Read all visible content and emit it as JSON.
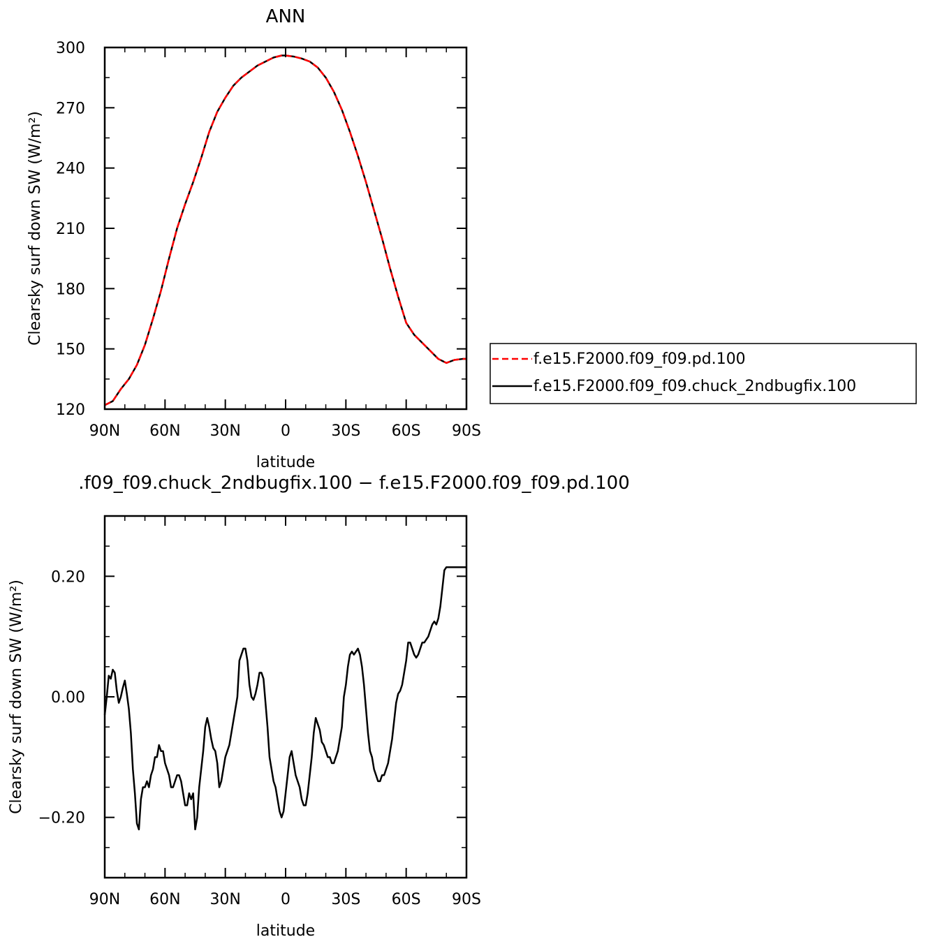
{
  "chart_data": [
    {
      "type": "line",
      "title": "ANN",
      "xlabel": "latitude",
      "ylabel": "Clearsky surf down SW (W/m²)",
      "xlim": [
        90,
        -90
      ],
      "ylim": [
        120,
        300
      ],
      "xticks": [
        90,
        60,
        30,
        0,
        -30,
        -60,
        -90
      ],
      "xtick_labels": [
        "90N",
        "60N",
        "30N",
        "0",
        "30S",
        "60S",
        "90S"
      ],
      "yticks": [
        120,
        150,
        180,
        210,
        240,
        270,
        300
      ],
      "ytick_labels": [
        "120",
        "150",
        "180",
        "210",
        "240",
        "270",
        "300"
      ],
      "legend_position": "right",
      "series": [
        {
          "name": "f.e15.F2000.f09_f09.pd.100",
          "color": "#ff0000",
          "dash": "dashed",
          "x": [
            90,
            86,
            82,
            78,
            74,
            70,
            66,
            62,
            58,
            54,
            50,
            46,
            42,
            38,
            34,
            30,
            26,
            22,
            18,
            14,
            10,
            6,
            2,
            0,
            -4,
            -8,
            -12,
            -16,
            -20,
            -24,
            -28,
            -32,
            -36,
            -40,
            -44,
            -48,
            -52,
            -56,
            -60,
            -64,
            -68,
            -72,
            -76,
            -80,
            -84,
            -88,
            -90
          ],
          "values": [
            122,
            124,
            130,
            135,
            142,
            152,
            165,
            179,
            195,
            210,
            222,
            233,
            245,
            258,
            268,
            275,
            281,
            285,
            288,
            291,
            293,
            295,
            296,
            296,
            295.5,
            294.5,
            293,
            290,
            285,
            278,
            269,
            258,
            246,
            233,
            219,
            205,
            190,
            176,
            163,
            157,
            153,
            149,
            145,
            143,
            144.5,
            145,
            145
          ]
        },
        {
          "name": "f.e15.F2000.f09_f09.chuck_2ndbugfix.100",
          "color": "#000000",
          "dash": "solid",
          "x": [
            90,
            86,
            82,
            78,
            74,
            70,
            66,
            62,
            58,
            54,
            50,
            46,
            42,
            38,
            34,
            30,
            26,
            22,
            18,
            14,
            10,
            6,
            2,
            0,
            -4,
            -8,
            -12,
            -16,
            -20,
            -24,
            -28,
            -32,
            -36,
            -40,
            -44,
            -48,
            -52,
            -56,
            -60,
            -64,
            -68,
            -72,
            -76,
            -80,
            -84,
            -88,
            -90
          ],
          "values": [
            122,
            124,
            130,
            135,
            142,
            152,
            165,
            179,
            195,
            210,
            222,
            233,
            245,
            258,
            268,
            275,
            281,
            285,
            288,
            291,
            293,
            295,
            296,
            296,
            295.5,
            294.5,
            293,
            290,
            285,
            278,
            269,
            258,
            246,
            233,
            219,
            205,
            190,
            176,
            163,
            157,
            153,
            149,
            145,
            143,
            144.5,
            145,
            145
          ]
        }
      ]
    },
    {
      "type": "line",
      "title": ".f09_f09.chuck_2ndbugfix.100 − f.e15.F2000.f09_f09.pd.100",
      "xlabel": "latitude",
      "ylabel": "Clearsky surf down SW (W/m²)",
      "xlim": [
        90,
        -90
      ],
      "ylim": [
        -0.3,
        0.3
      ],
      "xticks": [
        90,
        60,
        30,
        0,
        -30,
        -60,
        -90
      ],
      "xtick_labels": [
        "90N",
        "60N",
        "30N",
        "0",
        "30S",
        "60S",
        "90S"
      ],
      "yticks": [
        -0.2,
        0,
        0.2
      ],
      "ytick_labels": [
        "−0.20",
        "0.00",
        "0.20"
      ],
      "series": [
        {
          "name": "",
          "color": "#000000",
          "dash": "solid",
          "x": [
            90,
            89,
            88,
            87,
            86,
            85,
            84,
            83,
            82,
            81,
            80,
            79,
            78,
            77,
            76,
            75,
            74,
            73,
            72,
            71,
            70,
            69,
            68,
            67,
            66,
            65,
            64,
            63,
            62,
            61,
            60,
            59,
            58,
            57,
            56,
            55,
            54,
            53,
            52,
            51,
            50,
            49,
            48,
            47,
            46,
            45,
            44,
            43,
            42,
            41,
            40,
            39,
            38,
            37,
            36,
            35,
            34,
            33,
            32,
            31,
            30,
            29,
            28,
            27,
            26,
            25,
            24,
            23,
            22,
            21,
            20,
            19,
            18,
            17,
            16,
            15,
            14,
            13,
            12,
            11,
            10,
            9,
            8,
            7,
            6,
            5,
            4,
            3,
            2,
            1,
            0,
            -1,
            -2,
            -3,
            -4,
            -5,
            -6,
            -7,
            -8,
            -9,
            -10,
            -11,
            -12,
            -13,
            -14,
            -15,
            -16,
            -17,
            -18,
            -19,
            -20,
            -21,
            -22,
            -23,
            -24,
            -25,
            -26,
            -27,
            -28,
            -29,
            -30,
            -31,
            -32,
            -33,
            -34,
            -35,
            -36,
            -37,
            -38,
            -39,
            -40,
            -41,
            -42,
            -43,
            -44,
            -45,
            -46,
            -47,
            -48,
            -49,
            -50,
            -51,
            -52,
            -53,
            -54,
            -55,
            -56,
            -57,
            -58,
            -59,
            -60,
            -61,
            -62,
            -63,
            -64,
            -65,
            -66,
            -67,
            -68,
            -69,
            -70,
            -71,
            -72,
            -73,
            -74,
            -75,
            -76,
            -77,
            -78,
            -79,
            -80,
            -81,
            -82,
            -83,
            -84,
            -85,
            -86,
            -87,
            -88,
            -89,
            -90
          ],
          "values": [
            -0.03,
            0.0,
            0.035,
            0.03,
            0.045,
            0.04,
            0.01,
            -0.01,
            0.0,
            0.015,
            0.027,
            0.005,
            -0.02,
            -0.06,
            -0.12,
            -0.16,
            -0.21,
            -0.22,
            -0.17,
            -0.15,
            -0.15,
            -0.14,
            -0.15,
            -0.13,
            -0.12,
            -0.1,
            -0.1,
            -0.08,
            -0.09,
            -0.09,
            -0.11,
            -0.12,
            -0.13,
            -0.15,
            -0.15,
            -0.14,
            -0.13,
            -0.13,
            -0.14,
            -0.16,
            -0.18,
            -0.18,
            -0.16,
            -0.17,
            -0.16,
            -0.22,
            -0.2,
            -0.15,
            -0.12,
            -0.09,
            -0.05,
            -0.035,
            -0.05,
            -0.07,
            -0.085,
            -0.09,
            -0.11,
            -0.15,
            -0.14,
            -0.12,
            -0.1,
            -0.09,
            -0.08,
            -0.06,
            -0.04,
            -0.02,
            0.0,
            0.06,
            0.07,
            0.08,
            0.08,
            0.06,
            0.02,
            0.0,
            -0.005,
            0.005,
            0.02,
            0.04,
            0.04,
            0.03,
            -0.01,
            -0.05,
            -0.1,
            -0.12,
            -0.14,
            -0.15,
            -0.17,
            -0.19,
            -0.2,
            -0.19,
            -0.16,
            -0.13,
            -0.1,
            -0.09,
            -0.11,
            -0.13,
            -0.14,
            -0.15,
            -0.17,
            -0.18,
            -0.18,
            -0.16,
            -0.13,
            -0.1,
            -0.06,
            -0.035,
            -0.045,
            -0.055,
            -0.075,
            -0.08,
            -0.09,
            -0.1,
            -0.1,
            -0.11,
            -0.11,
            -0.1,
            -0.09,
            -0.07,
            -0.05,
            0.0,
            0.02,
            0.05,
            0.07,
            0.075,
            0.07,
            0.075,
            0.08,
            0.07,
            0.05,
            0.02,
            -0.02,
            -0.06,
            -0.09,
            -0.1,
            -0.12,
            -0.13,
            -0.14,
            -0.14,
            -0.13,
            -0.13,
            -0.12,
            -0.11,
            -0.09,
            -0.07,
            -0.04,
            -0.01,
            0.005,
            0.01,
            0.02,
            0.04,
            0.06,
            0.09,
            0.09,
            0.08,
            0.07,
            0.065,
            0.07,
            0.08,
            0.09,
            0.09,
            0.095,
            0.1,
            0.11,
            0.12,
            0.125,
            0.12,
            0.13,
            0.15,
            0.18,
            0.21,
            0.215,
            0.215,
            0.215,
            0.215,
            0.215,
            0.215,
            0.215,
            0.215,
            0.215,
            0.215,
            0.215
          ]
        }
      ]
    }
  ]
}
